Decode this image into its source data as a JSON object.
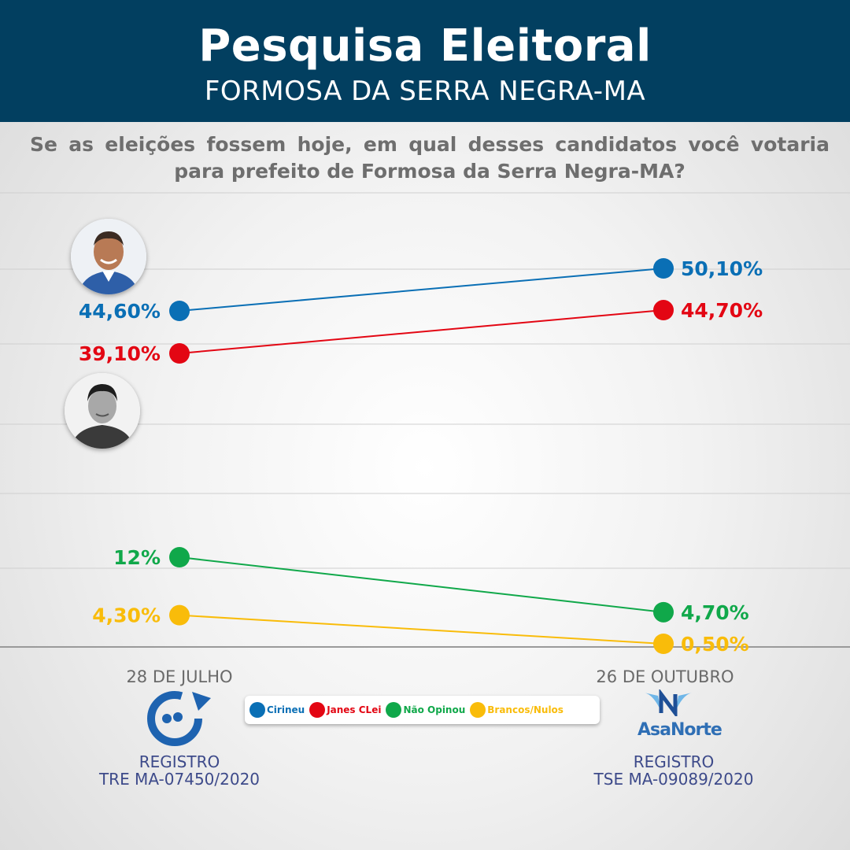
{
  "header": {
    "title": "Pesquisa Eleitoral",
    "subtitle": "FORMOSA DA SERRA NEGRA-MA"
  },
  "question": "Se as eleições fossem hoje, em qual desses candidatos você votaria para prefeito de Formosa da Serra Negra-MA?",
  "chart_data": {
    "type": "line",
    "x": [
      "28 DE JULHO",
      "26 DE OUTUBRO"
    ],
    "series": [
      {
        "name": "Cirineu",
        "color": "#0a6fb5",
        "values": [
          44.6,
          50.1
        ],
        "labels": [
          "44,60%",
          "50,10%"
        ]
      },
      {
        "name": "Janes CLei",
        "color": "#e30613",
        "values": [
          39.1,
          44.7
        ],
        "labels": [
          "39,10%",
          "44,70%"
        ]
      },
      {
        "name": "Não Opinou",
        "color": "#10a84a",
        "values": [
          12,
          4.7
        ],
        "labels": [
          "12%",
          "4,70%"
        ]
      },
      {
        "name": "Brancos/Nulos",
        "color": "#f9bc0a",
        "values": [
          4.3,
          0.5
        ],
        "labels": [
          "4,30%",
          "0,50%"
        ]
      }
    ],
    "ylim": [
      0,
      55
    ],
    "grid": true,
    "legend": "bottom-center"
  },
  "footer": {
    "left_date": "28 DE JULHO",
    "right_date": "26 DE OUTUBRO",
    "left_registry_line1": "REGISTRO",
    "left_registry_line2": "TRE MA-07450/2020",
    "right_registry_line1": "REGISTRO",
    "right_registry_line2": "TSE MA-09089/2020",
    "right_logo_text": "AsaNorte"
  },
  "legend": [
    {
      "label": "Cirineu",
      "color": "#0a6fb5"
    },
    {
      "label": "Janes CLei",
      "color": "#e30613"
    },
    {
      "label": "Não Opinou",
      "color": "#10a84a"
    },
    {
      "label": "Brancos/Nulos",
      "color": "#f9bc0a"
    }
  ]
}
